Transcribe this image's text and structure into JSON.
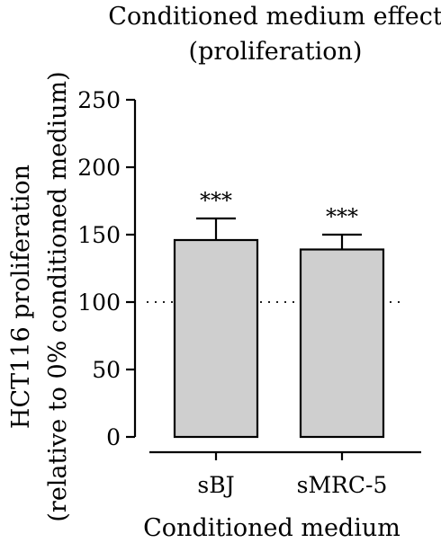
{
  "chart_data": {
    "type": "bar",
    "title": [
      "Conditioned medium effect",
      "(proliferation)"
    ],
    "ylabel": [
      "HCT116 proliferation",
      "(relative to 0% conditioned medium)"
    ],
    "xlabel": "Conditioned medium",
    "categories": [
      "sBJ",
      "sMRC-5"
    ],
    "values": [
      146,
      139
    ],
    "errors": [
      16,
      11
    ],
    "significance": [
      "***",
      "***"
    ],
    "ylim": [
      0,
      250
    ],
    "yticks": [
      0,
      50,
      100,
      150,
      200,
      250
    ],
    "reference_line": 100,
    "bar_color": "#cfcfcf",
    "grid": false,
    "legend": "none"
  }
}
